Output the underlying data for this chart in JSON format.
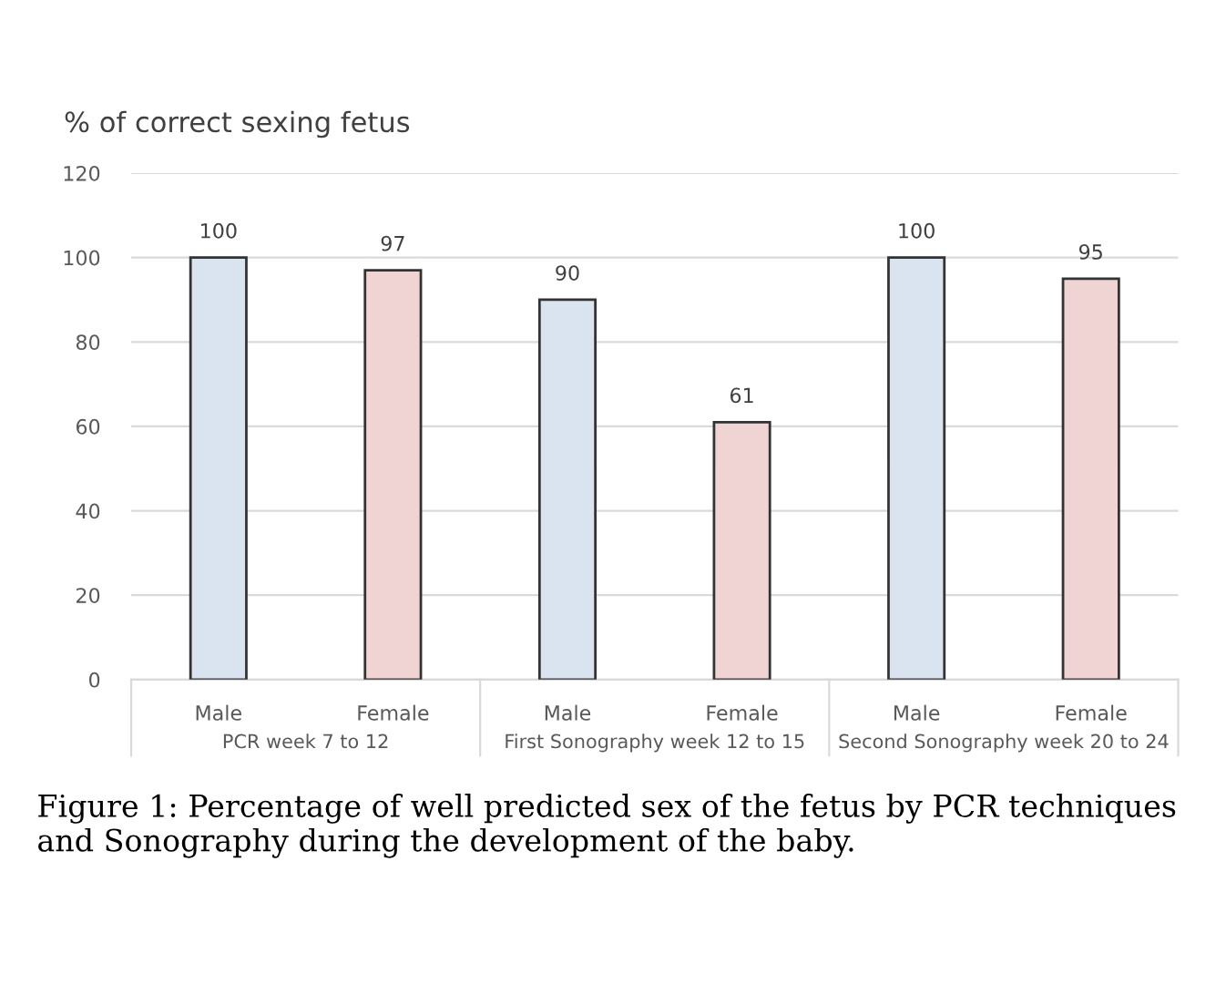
{
  "chart_data": {
    "type": "bar",
    "title": "% of correct sexing fetus",
    "categories": [
      "Male",
      "Female",
      "Male",
      "Female",
      "Male",
      "Female"
    ],
    "values": [
      100,
      97,
      90,
      61,
      100,
      95
    ],
    "colors": [
      "#dae3f0",
      "#f0d4d4",
      "#dae3f0",
      "#f0d4d4",
      "#dae3f0",
      "#f0d4d4"
    ],
    "ylim": [
      0,
      120
    ],
    "yticks": [
      0,
      20,
      40,
      60,
      80,
      100,
      120
    ],
    "grid": "y",
    "data_labels": true,
    "legend": false,
    "annotations": [
      "PCR week 7 to 12",
      "First Sonography week 12 to 15",
      "Second Sonography week 20 to 24",
      "Figure 1: Percentage of well predicted sex of the fetus by PCR techniques and Sonography during the development of the baby."
    ]
  }
}
